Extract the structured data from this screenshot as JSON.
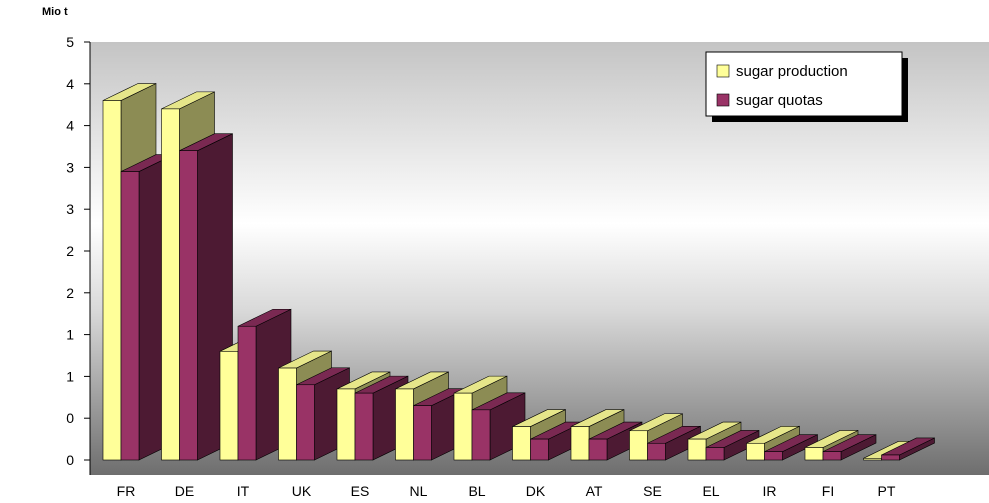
{
  "chart_data": {
    "type": "bar",
    "subtype": "3d-clustered",
    "title": "",
    "xlabel": "",
    "ylabel": "Mio t",
    "categories": [
      "FR",
      "DE",
      "IT",
      "UK",
      "ES",
      "NL",
      "BL",
      "DK",
      "AT",
      "SE",
      "EL",
      "IR",
      "FI",
      "PT"
    ],
    "y_tick_labels": [
      "0",
      "0",
      "1",
      "1",
      "2",
      "2",
      "3",
      "3",
      "4",
      "4",
      "5"
    ],
    "ylim": [
      0,
      5
    ],
    "grid": false,
    "legend_position": "top-right",
    "series": [
      {
        "name": "sugar production",
        "color": "#FFFF99",
        "values": [
          4.3,
          4.2,
          1.3,
          1.1,
          0.85,
          0.85,
          0.8,
          0.4,
          0.4,
          0.35,
          0.25,
          0.2,
          0.15,
          0.02
        ]
      },
      {
        "name": "sugar quotas",
        "color": "#993366",
        "values": [
          3.45,
          3.7,
          1.6,
          0.9,
          0.8,
          0.65,
          0.6,
          0.25,
          0.25,
          0.2,
          0.15,
          0.1,
          0.1,
          0.06
        ]
      }
    ]
  }
}
